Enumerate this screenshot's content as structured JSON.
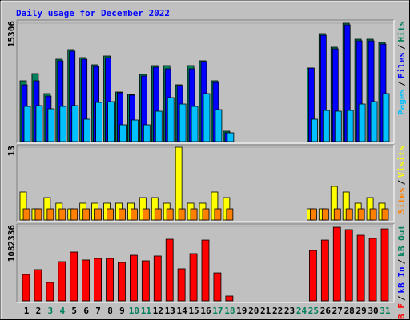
{
  "chart_data": [
    {
      "type": "bar",
      "title": "Daily usage for December 2022",
      "ylim": [
        0,
        15306
      ],
      "yticks": [
        15306
      ],
      "legend_separator": "/",
      "series": [
        {
          "name": "Hits",
          "color": "#00805c",
          "values": [
            7860,
            8790,
            6205,
            10651,
            11893,
            10858,
            9928,
            11065,
            6412,
            6101,
            8687,
            9824,
            9824,
            7342,
            9824,
            10445,
            7860,
            1344,
            0,
            0,
            0,
            0,
            0,
            0,
            9514,
            13961,
            12203,
            15306,
            13237,
            13237,
            12823
          ]
        },
        {
          "name": "Files",
          "color": "#0000ff",
          "values": [
            7340,
            7860,
            5890,
            10450,
            11690,
            10650,
            9720,
            10860,
            6310,
            6000,
            8480,
            9620,
            9410,
            7240,
            9410,
            10340,
            7650,
            1140,
            0,
            0,
            0,
            0,
            0,
            0,
            9510,
            13750,
            12000,
            15100,
            13030,
            13030,
            12610
          ]
        },
        {
          "name": "Pages",
          "color": "#00c0ff",
          "values": [
            4550,
            4654,
            4240,
            4550,
            4654,
            2896,
            5067,
            5171,
            2172,
            2792,
            2172,
            3930,
            5688,
            4860,
            4550,
            6205,
            4137,
            1138,
            0,
            0,
            0,
            0,
            0,
            0,
            2896,
            4033,
            3930,
            4033,
            4860,
            5171,
            6205
          ]
        }
      ]
    },
    {
      "type": "bar",
      "ylim": [
        0,
        13
      ],
      "yticks": [
        13
      ],
      "legend_separator": "/",
      "series": [
        {
          "name": "Visits",
          "color": "#ffff00",
          "values": [
            5,
            2,
            4,
            3,
            2,
            3,
            3,
            3,
            3,
            3,
            4,
            4,
            3,
            13,
            3,
            3,
            5,
            4,
            0,
            0,
            0,
            0,
            0,
            0,
            2,
            2,
            6,
            5,
            3,
            4,
            3
          ]
        },
        {
          "name": "Sites",
          "color": "#ff8000",
          "values": [
            2,
            2,
            2,
            2,
            2,
            2,
            2,
            2,
            2,
            2,
            2,
            2,
            2,
            2,
            2,
            2,
            2,
            2,
            0,
            0,
            0,
            0,
            0,
            0,
            2,
            2,
            2,
            2,
            2,
            2,
            2
          ]
        }
      ]
    },
    {
      "type": "bar",
      "ylim": [
        0,
        1082336
      ],
      "yticks": [
        1082336
      ],
      "legend_separator": "/",
      "categories": [
        "1",
        "2",
        "3",
        "4",
        "5",
        "6",
        "7",
        "8",
        "9",
        "10",
        "11",
        "12",
        "13",
        "14",
        "15",
        "16",
        "17",
        "18",
        "19",
        "20",
        "21",
        "22",
        "23",
        "24",
        "25",
        "26",
        "27",
        "28",
        "29",
        "30",
        "31"
      ],
      "weekend_indices": [
        2,
        3,
        9,
        10,
        16,
        17,
        23,
        24,
        30
      ],
      "weekend_color": "#00805c",
      "series": [
        {
          "name": "kB F",
          "color": "#ff0000",
          "values": [
            384000,
            454000,
            268000,
            570000,
            710000,
            594000,
            617000,
            617000,
            559000,
            663000,
            582000,
            652000,
            896000,
            466000,
            687000,
            884000,
            407000,
            70000,
            0,
            0,
            0,
            0,
            0,
            0,
            733000,
            884000,
            1070000,
            1036000,
            954000,
            908000,
            1047000
          ]
        }
      ],
      "legend_extra": [
        {
          "name": "kB In",
          "color": "#0000ff"
        },
        {
          "name": "kB Out",
          "color": "#00805c"
        }
      ]
    }
  ]
}
